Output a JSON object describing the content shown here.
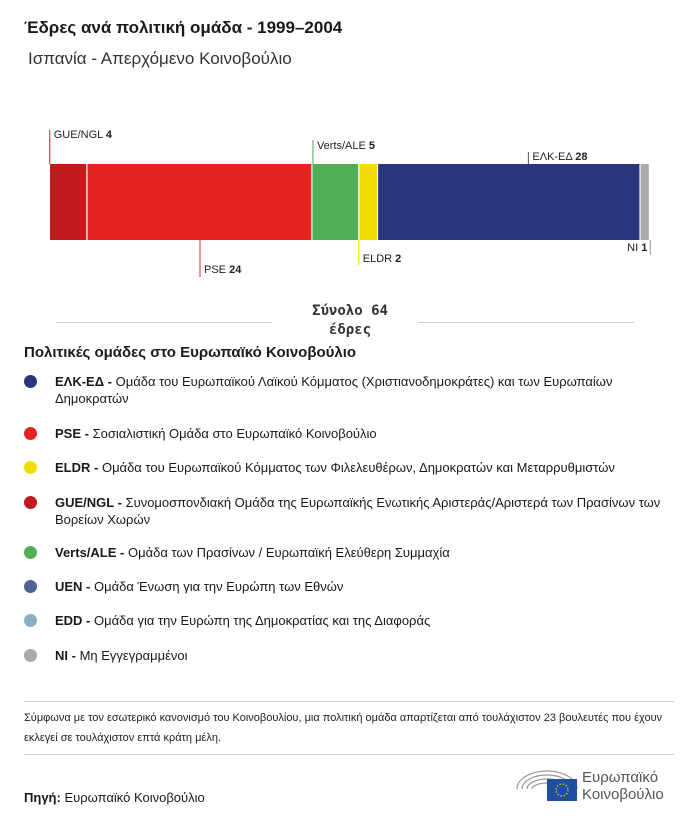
{
  "title": "Έδρες ανά πολιτική ομάδα - 1999–2004",
  "subtitle": "Ισπανία - Απερχόμενο Κοινοβούλιο",
  "chart_data": {
    "type": "bar",
    "stacked": true,
    "orientation": "horizontal",
    "categories": [
      "GUE/NGL",
      "PSE",
      "Verts/ALE",
      "ELDR",
      "ΕΛΚ-ΕΔ",
      "NI"
    ],
    "values": [
      4,
      24,
      5,
      2,
      28,
      1
    ],
    "colors": [
      "#c01c1e",
      "#e52422",
      "#50ae55",
      "#f0dc00",
      "#28367e",
      "#aaaaaa"
    ],
    "total_label": "Σύνολο  64",
    "total_unit": "έδρες"
  },
  "legend": {
    "title": "Πολιτικές ομάδες στο Ευρωπαϊκό Κοινοβούλιο",
    "items": [
      {
        "abbr": "ΕΛΚ-ΕΔ -",
        "desc": " Ομάδα του Ευρωπαϊκού Λαϊκού Κόμματος (Χριστιανοδημοκράτες) και των Ευρωπαίων Δημοκρατών",
        "color": "#28367e"
      },
      {
        "abbr": "PSE -",
        "desc": " Σοσιαλιστική Ομάδα στο Ευρωπαϊκό Κοινοβούλιο",
        "color": "#e52422"
      },
      {
        "abbr": "ELDR -",
        "desc": " Ομάδα του Ευρωπαϊκού Κόμματος των Φιλελευθέρων, Δημοκρατών και Μεταρρυθμιστών",
        "color": "#f0dc00"
      },
      {
        "abbr": "GUE/NGL -",
        "desc": " Συνομοσπονδιακή Ομάδα της Ευρωπαϊκής Ενωτικής Αριστεράς/Αριστερά των Πρασίνων των Βορείων Χωρών",
        "color": "#c01c1e"
      },
      {
        "abbr": "Verts/ALE -",
        "desc": " Ομάδα των Πρασίνων / Ευρωπαϊκή Ελεύθερη Συμμαχία",
        "color": "#50ae55"
      },
      {
        "abbr": "UEN -",
        "desc": " Ομάδα Ένωση για την Ευρώπη των Εθνών",
        "color": "#4d6390"
      },
      {
        "abbr": "EDD -",
        "desc": " Ομάδα για την Ευρώπη της Δημοκρατίας και της Διαφοράς",
        "color": "#8aaec6"
      },
      {
        "abbr": "NI -",
        "desc": " Μη Εγγεγραμμένοι",
        "color": "#aaaaaa"
      }
    ]
  },
  "note": "Σύμφωνα με τον εσωτερικό κανονισμό του Κοινοβουλίου, μια πολιτική ομάδα απαρτίζεται από τουλάχιστον 23 βουλευτές που έχουν εκλεγεί σε τουλάχιστον επτά κράτη μέλη.",
  "source": {
    "label": "Πηγή:",
    "value": " Ευρωπαϊκό Κοινοβούλιο"
  },
  "logo": {
    "line1": "Ευρωπαϊκό",
    "line2": "Κοινοβούλιο"
  }
}
